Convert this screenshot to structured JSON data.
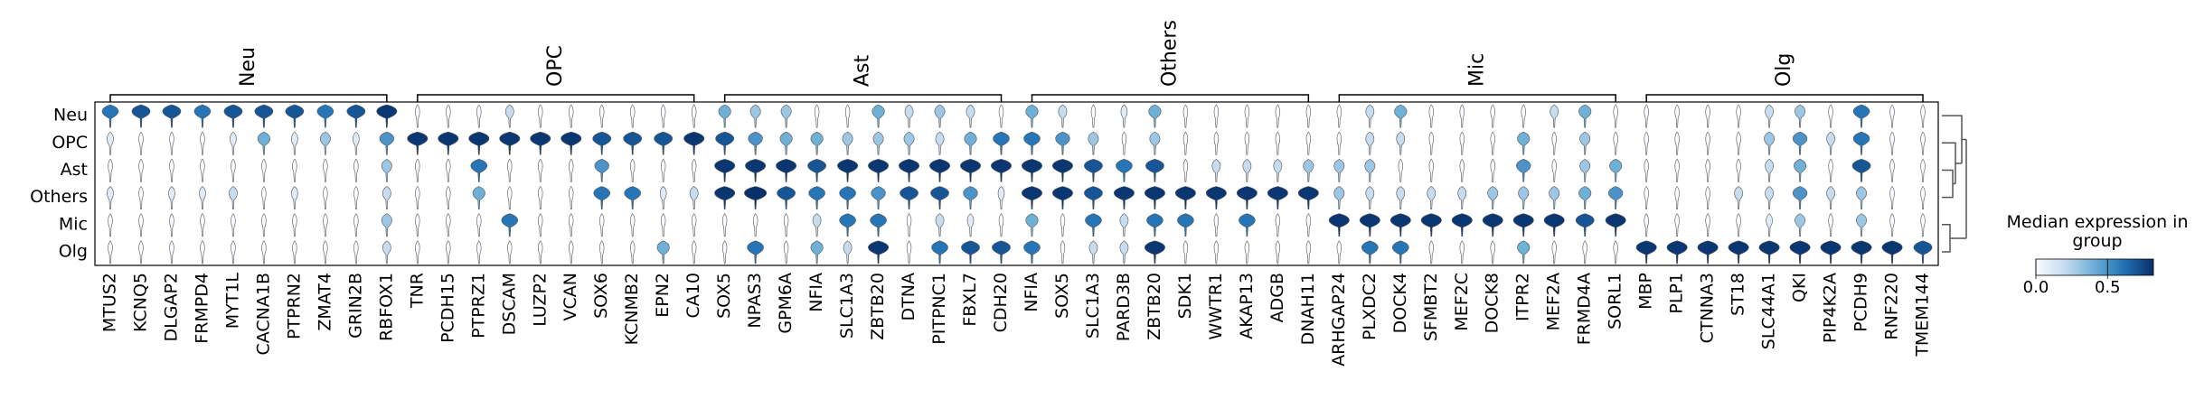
{
  "chart_data": {
    "type": "stacked_violin",
    "rows": [
      "Neu",
      "OPC",
      "Ast",
      "Others",
      "Mic",
      "Olg"
    ],
    "var_groups": [
      {
        "name": "Neu",
        "genes": [
          "MTUS2",
          "KCNQ5",
          "DLGAP2",
          "FRMPD4",
          "MYT1L",
          "CACNA1B",
          "PTPRN2",
          "ZMAT4",
          "GRIN2B",
          "RBFOX1"
        ]
      },
      {
        "name": "OPC",
        "genes": [
          "TNR",
          "PCDH15",
          "PTPRZ1",
          "DSCAM",
          "LUZP2",
          "VCAN",
          "SOX6",
          "KCNMB2",
          "EPN2",
          "CA10"
        ]
      },
      {
        "name": "Ast",
        "genes": [
          "SOX5",
          "NPAS3",
          "GPM6A",
          "NFIA",
          "SLC1A3",
          "ZBTB20",
          "DTNA",
          "PITPNC1",
          "FBXL7",
          "CDH20"
        ]
      },
      {
        "name": "Others",
        "genes": [
          "NFIA",
          "SOX5",
          "SLC1A3",
          "PARD3B",
          "ZBTB20",
          "SDK1",
          "WWTR1",
          "AKAP13",
          "ADGB",
          "DNAH11"
        ]
      },
      {
        "name": "Mic",
        "genes": [
          "ARHGAP24",
          "PLXDC2",
          "DOCK4",
          "SFMBT2",
          "MEF2C",
          "DOCK8",
          "ITPR2",
          "MEF2A",
          "FRMD4A",
          "SORL1"
        ]
      },
      {
        "name": "Olg",
        "genes": [
          "MBP",
          "PLP1",
          "CTNNA3",
          "ST18",
          "SLC44A1",
          "QKI",
          "PIP4K2A",
          "PCDH9",
          "RNF220",
          "TMEM144"
        ]
      }
    ],
    "values": [
      [
        0.6,
        0.7,
        0.7,
        0.6,
        0.7,
        0.7,
        0.7,
        0.6,
        0.7,
        0.8,
        0,
        0,
        0,
        0.2,
        0,
        0,
        0,
        0,
        0,
        0,
        0.4,
        0.3,
        0.3,
        0,
        0,
        0.4,
        0.2,
        0.3,
        0.2,
        0,
        0.4,
        0.2,
        0,
        0.1,
        0.4,
        0,
        0,
        0,
        0,
        0,
        0,
        0.2,
        0.4,
        0,
        0,
        0,
        0,
        0.2,
        0.4,
        0,
        0,
        0,
        0,
        0,
        0.2,
        0.3,
        0,
        0.6,
        0,
        0
      ],
      [
        0.1,
        0,
        0,
        0,
        0.1,
        0.4,
        0.1,
        0.3,
        0.1,
        0.5,
        0.8,
        0.8,
        0.8,
        0.8,
        0.8,
        0.8,
        0.7,
        0.7,
        0.7,
        0.8,
        0.7,
        0.5,
        0.4,
        0.4,
        0.3,
        0.3,
        0.3,
        0.2,
        0.4,
        0.6,
        0.6,
        0.5,
        0.3,
        0,
        0.3,
        0,
        0,
        0,
        0,
        0,
        0,
        0.2,
        0.2,
        0,
        0,
        0,
        0.4,
        0,
        0.3,
        0,
        0,
        0,
        0,
        0,
        0.3,
        0.5,
        0.2,
        0.6,
        0,
        0
      ],
      [
        0,
        0,
        0,
        0,
        0,
        0,
        0,
        0,
        0,
        0.3,
        0,
        0,
        0.6,
        0,
        0,
        0,
        0.5,
        0,
        0,
        0,
        0.8,
        0.8,
        0.8,
        0.7,
        0.8,
        0.8,
        0.8,
        0.8,
        0.8,
        0.8,
        0.8,
        0.8,
        0.7,
        0.6,
        0.7,
        0,
        0.2,
        0.2,
        0.2,
        0.3,
        0.3,
        0.3,
        0,
        0,
        0,
        0,
        0.5,
        0,
        0.3,
        0.4,
        0,
        0,
        0,
        0,
        0.2,
        0.4,
        0,
        0.7,
        0,
        0
      ],
      [
        0.1,
        0,
        0.1,
        0.1,
        0.2,
        0,
        0.1,
        0,
        0,
        0.2,
        0,
        0,
        0.4,
        0,
        0,
        0,
        0.6,
        0.6,
        0.1,
        0.2,
        0.8,
        0.9,
        0.7,
        0.6,
        0.6,
        0.5,
        0.7,
        0.7,
        0.5,
        0.1,
        0.8,
        0.8,
        0.7,
        0.8,
        0.8,
        0.8,
        0.8,
        0.8,
        0.8,
        0.8,
        0.3,
        0.2,
        0.2,
        0.2,
        0.2,
        0.3,
        0.3,
        0.3,
        0.4,
        0.5,
        0,
        0,
        0,
        0.2,
        0.2,
        0.5,
        0.2,
        0.3,
        0,
        0
      ],
      [
        0,
        0,
        0,
        0,
        0,
        0,
        0,
        0,
        0,
        0.3,
        0,
        0,
        0,
        0.6,
        0,
        0,
        0,
        0,
        0,
        0,
        0,
        0,
        0,
        0.2,
        0.6,
        0.6,
        0,
        0.2,
        0.1,
        0,
        0.4,
        0,
        0.6,
        0.2,
        0.6,
        0.6,
        0,
        0.6,
        0,
        0,
        0.8,
        0.8,
        0.8,
        0.8,
        0.8,
        0.8,
        0.8,
        0.8,
        0.7,
        0.8,
        0,
        0,
        0,
        0,
        0.1,
        0.3,
        0,
        0.3,
        0,
        0
      ],
      [
        0,
        0,
        0,
        0,
        0,
        0,
        0,
        0,
        0,
        0.2,
        0,
        0,
        0,
        0,
        0,
        0,
        0,
        0,
        0.4,
        0,
        0,
        0.6,
        0,
        0.4,
        0.2,
        0.8,
        0,
        0.6,
        0.7,
        0.7,
        0.6,
        0,
        0.2,
        0.2,
        0.8,
        0,
        0,
        0,
        0,
        0,
        0,
        0.6,
        0.6,
        0,
        0,
        0,
        0.4,
        0,
        0,
        0,
        0.8,
        0.8,
        0.8,
        0.8,
        0.8,
        0.8,
        0.8,
        0.8,
        0.8,
        0.7
      ]
    ],
    "colorbar": {
      "label": "Median expression in group",
      "lim": [
        0,
        0.82
      ],
      "ticks": [
        {
          "value": 0,
          "label": "0.0"
        },
        {
          "value": 0.5,
          "label": "0.5"
        }
      ]
    }
  }
}
